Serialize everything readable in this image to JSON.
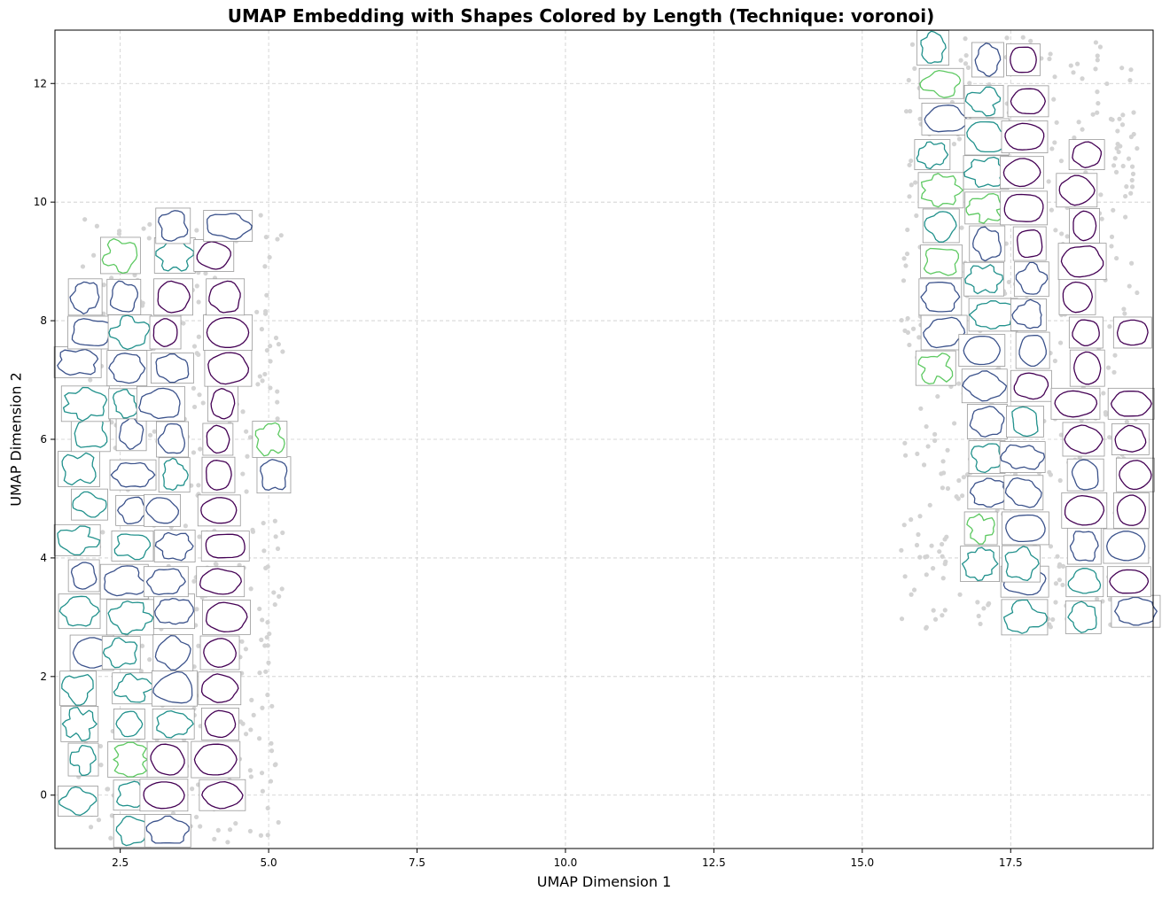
{
  "chart_data": {
    "type": "scatter",
    "title": "UMAP Embedding with Shapes Colored by Length (Technique: voronoi)",
    "xlabel": "UMAP Dimension 1",
    "ylabel": "UMAP Dimension 2",
    "xlim": [
      1.4,
      19.9
    ],
    "ylim": [
      -0.9,
      12.9
    ],
    "x_ticks": [
      2.5,
      5.0,
      7.5,
      10.0,
      12.5,
      15.0,
      17.5
    ],
    "x_tick_labels": [
      "2.5",
      "5.0",
      "7.5",
      "10.0",
      "12.5",
      "15.0",
      "17.5"
    ],
    "y_ticks": [
      0,
      2,
      4,
      6,
      8,
      10,
      12
    ],
    "y_tick_labels": [
      "0",
      "2",
      "4",
      "6",
      "8",
      "10",
      "12"
    ],
    "grid": true,
    "point_color": "#d3d3d3",
    "colormap": [
      "#440154",
      "#3b528b",
      "#21918c",
      "#5ec962"
    ],
    "clusters": [
      {
        "name": "left",
        "x_range": [
          1.6,
          5.4
        ],
        "y_range": [
          -0.8,
          9.8
        ]
      },
      {
        "name": "right",
        "x_range": [
          15.5,
          19.8
        ],
        "y_range": [
          2.8,
          12.8
        ]
      }
    ]
  }
}
